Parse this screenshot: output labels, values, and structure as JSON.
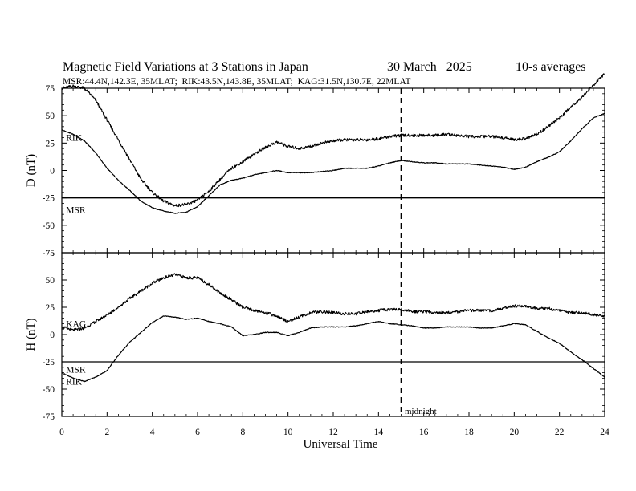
{
  "chart_data": {
    "type": "line",
    "title": "Magnetic Field Variations at 3 Stations in Japan",
    "date": "30 March   2025",
    "averaging": "10-s averages",
    "subtitle": "MSR:44.4N,142.3E, 35MLAT;  RIK:43.5N,143.8E, 35MLAT;  KAG:31.5N,130.7E, 22MLAT",
    "xlabel": "Universal Time",
    "xlim": [
      0,
      24
    ],
    "xticks": [
      0,
      2,
      4,
      6,
      8,
      10,
      12,
      14,
      16,
      18,
      20,
      22,
      24
    ],
    "midnight_ut": 15,
    "midnight_label": "midnight",
    "panels": [
      {
        "ylabel": "D (nT)",
        "ylim": [
          -75,
          75
        ],
        "yticks": [
          75,
          50,
          25,
          0,
          -25,
          -50,
          -75
        ],
        "series": [
          {
            "name": "MSR",
            "values": [
              [
                0,
                -25
              ],
              [
                24,
                -25
              ]
            ]
          },
          {
            "name": "RIK",
            "values": [
              [
                0,
                37
              ],
              [
                0.5,
                33
              ],
              [
                1,
                27
              ],
              [
                1.5,
                16
              ],
              [
                2,
                2
              ],
              [
                2.5,
                -9
              ],
              [
                3,
                -18
              ],
              [
                3.5,
                -28
              ],
              [
                4,
                -34
              ],
              [
                4.5,
                -37
              ],
              [
                5,
                -39
              ],
              [
                5.5,
                -38
              ],
              [
                6,
                -33
              ],
              [
                6.5,
                -23
              ],
              [
                7,
                -13
              ],
              [
                7.5,
                -9
              ],
              [
                8,
                -7
              ],
              [
                8.5,
                -4
              ],
              [
                9,
                -2
              ],
              [
                9.5,
                0
              ],
              [
                10,
                -2
              ],
              [
                10.5,
                -2
              ],
              [
                11,
                -2
              ],
              [
                11.5,
                -1
              ],
              [
                12,
                0
              ],
              [
                12.5,
                2
              ],
              [
                13,
                2
              ],
              [
                13.5,
                2
              ],
              [
                14,
                4
              ],
              [
                14.5,
                7
              ],
              [
                15,
                9
              ],
              [
                15.5,
                8
              ],
              [
                16,
                7
              ],
              [
                16.5,
                7
              ],
              [
                17,
                6
              ],
              [
                17.5,
                6
              ],
              [
                18,
                6
              ],
              [
                18.5,
                5
              ],
              [
                19,
                4
              ],
              [
                19.5,
                3
              ],
              [
                20,
                1
              ],
              [
                20.5,
                3
              ],
              [
                21,
                8
              ],
              [
                21.5,
                12
              ],
              [
                22,
                17
              ],
              [
                22.5,
                27
              ],
              [
                23,
                38
              ],
              [
                23.5,
                48
              ],
              [
                24,
                52
              ]
            ]
          },
          {
            "name": "KAG",
            "values": [
              [
                0,
                75
              ],
              [
                0.5,
                77
              ],
              [
                1,
                75
              ],
              [
                1.5,
                64
              ],
              [
                2,
                46
              ],
              [
                2.5,
                28
              ],
              [
                3,
                10
              ],
              [
                3.5,
                -8
              ],
              [
                4,
                -20
              ],
              [
                4.5,
                -28
              ],
              [
                5,
                -32
              ],
              [
                5.5,
                -31
              ],
              [
                6,
                -27
              ],
              [
                6.5,
                -19
              ],
              [
                7,
                -8
              ],
              [
                7.5,
                2
              ],
              [
                8,
                8
              ],
              [
                8.5,
                15
              ],
              [
                9,
                21
              ],
              [
                9.5,
                26
              ],
              [
                10,
                22
              ],
              [
                10.5,
                20
              ],
              [
                11,
                22
              ],
              [
                11.5,
                25
              ],
              [
                12,
                27
              ],
              [
                12.5,
                28
              ],
              [
                13,
                28
              ],
              [
                13.5,
                28
              ],
              [
                14,
                29
              ],
              [
                14.5,
                31
              ],
              [
                15,
                32
              ],
              [
                15.5,
                32
              ],
              [
                16,
                32
              ],
              [
                16.5,
                32
              ],
              [
                17,
                33
              ],
              [
                17.5,
                32
              ],
              [
                18,
                31
              ],
              [
                18.5,
                31
              ],
              [
                19,
                31
              ],
              [
                19.5,
                30
              ],
              [
                20,
                28
              ],
              [
                20.5,
                29
              ],
              [
                21,
                33
              ],
              [
                21.5,
                40
              ],
              [
                22,
                48
              ],
              [
                22.5,
                58
              ],
              [
                23,
                67
              ],
              [
                23.5,
                78
              ],
              [
                24,
                88
              ]
            ]
          }
        ],
        "labels": [
          {
            "text": "RIK",
            "x": 0.15,
            "y": 30
          },
          {
            "text": "MSR",
            "x": 0.15,
            "y": -36
          }
        ]
      },
      {
        "ylabel": "H (nT)",
        "ylim": [
          -75,
          75
        ],
        "yticks": [
          75,
          50,
          25,
          0,
          -25,
          -50,
          -75
        ],
        "series": [
          {
            "name": "MSR",
            "values": [
              [
                0,
                -25
              ],
              [
                24,
                -25
              ]
            ]
          },
          {
            "name": "RIK",
            "values": [
              [
                0,
                -35
              ],
              [
                0.5,
                -40
              ],
              [
                1,
                -43
              ],
              [
                1.5,
                -39
              ],
              [
                2,
                -33
              ],
              [
                2.5,
                -19
              ],
              [
                3,
                -7
              ],
              [
                3.5,
                2
              ],
              [
                4,
                11
              ],
              [
                4.5,
                17
              ],
              [
                5,
                16
              ],
              [
                5.5,
                14
              ],
              [
                6,
                15
              ],
              [
                6.5,
                12
              ],
              [
                7,
                10
              ],
              [
                7.5,
                7
              ],
              [
                8,
                -1
              ],
              [
                8.5,
                0
              ],
              [
                9,
                2
              ],
              [
                9.5,
                2
              ],
              [
                10,
                -1
              ],
              [
                10.5,
                2
              ],
              [
                11,
                6
              ],
              [
                11.5,
                7
              ],
              [
                12,
                7
              ],
              [
                12.5,
                7
              ],
              [
                13,
                8
              ],
              [
                13.5,
                10
              ],
              [
                14,
                12
              ],
              [
                14.5,
                10
              ],
              [
                15,
                9
              ],
              [
                15.5,
                8
              ],
              [
                16,
                6
              ],
              [
                16.5,
                6
              ],
              [
                17,
                7
              ],
              [
                17.5,
                7
              ],
              [
                18,
                7
              ],
              [
                18.5,
                6
              ],
              [
                19,
                6
              ],
              [
                19.5,
                8
              ],
              [
                20,
                10
              ],
              [
                20.5,
                9
              ],
              [
                21,
                3
              ],
              [
                21.5,
                -3
              ],
              [
                22,
                -8
              ],
              [
                22.5,
                -16
              ],
              [
                23,
                -23
              ],
              [
                23.5,
                -31
              ],
              [
                24,
                -39
              ]
            ]
          },
          {
            "name": "KAG",
            "values": [
              [
                0,
                7
              ],
              [
                0.5,
                4
              ],
              [
                1,
                6
              ],
              [
                1.5,
                12
              ],
              [
                2,
                18
              ],
              [
                2.5,
                25
              ],
              [
                3,
                33
              ],
              [
                3.5,
                40
              ],
              [
                4,
                47
              ],
              [
                4.5,
                52
              ],
              [
                5,
                55
              ],
              [
                5.5,
                52
              ],
              [
                6,
                52
              ],
              [
                6.5,
                46
              ],
              [
                7,
                38
              ],
              [
                7.5,
                32
              ],
              [
                8,
                25
              ],
              [
                8.5,
                22
              ],
              [
                9,
                20
              ],
              [
                9.5,
                17
              ],
              [
                10,
                12
              ],
              [
                10.5,
                16
              ],
              [
                11,
                20
              ],
              [
                11.5,
                21
              ],
              [
                12,
                20
              ],
              [
                12.5,
                19
              ],
              [
                13,
                19
              ],
              [
                13.5,
                21
              ],
              [
                14,
                22
              ],
              [
                14.5,
                23
              ],
              [
                15,
                23
              ],
              [
                15.5,
                21
              ],
              [
                16,
                21
              ],
              [
                16.5,
                20
              ],
              [
                17,
                20
              ],
              [
                17.5,
                21
              ],
              [
                18,
                22
              ],
              [
                18.5,
                22
              ],
              [
                19,
                22
              ],
              [
                19.5,
                24
              ],
              [
                20,
                26
              ],
              [
                20.5,
                26
              ],
              [
                21,
                24
              ],
              [
                21.5,
                24
              ],
              [
                22,
                22
              ],
              [
                22.5,
                20
              ],
              [
                23,
                20
              ],
              [
                23.5,
                18
              ],
              [
                24,
                17
              ]
            ]
          }
        ],
        "labels": [
          {
            "text": "KAG",
            "x": 0.15,
            "y": 10
          },
          {
            "text": "MSR",
            "x": 0.15,
            "y": -32
          },
          {
            "text": "RIK",
            "x": 0.15,
            "y": -43
          }
        ]
      }
    ]
  }
}
